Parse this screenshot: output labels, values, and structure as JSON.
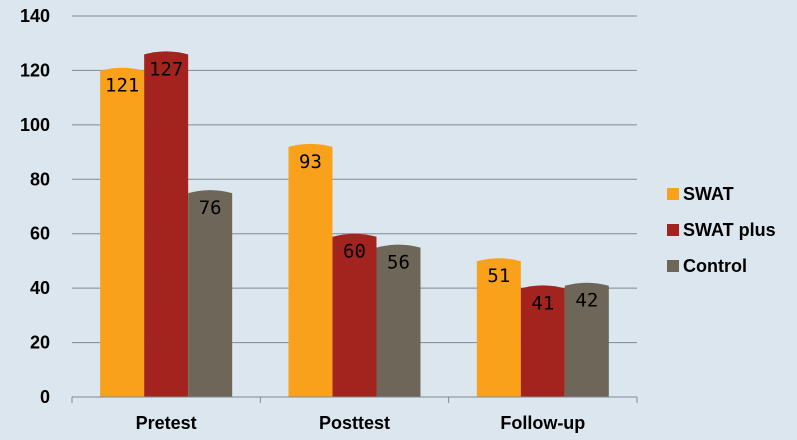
{
  "chart_data": {
    "type": "bar",
    "categories": [
      "Pretest",
      "Posttest",
      "Follow-up"
    ],
    "series": [
      {
        "name": "SWAT",
        "values": [
          121,
          93,
          51
        ],
        "color": "#f9a11b"
      },
      {
        "name": "SWAT plus",
        "values": [
          127,
          60,
          41
        ],
        "color": "#a3241f"
      },
      {
        "name": "Control",
        "values": [
          76,
          56,
          42
        ],
        "color": "#6e6759"
      }
    ],
    "yticks": [
      0,
      20,
      40,
      60,
      80,
      100,
      120,
      140
    ],
    "ylim": [
      0,
      140
    ],
    "grid": true,
    "legend_position": "right",
    "title": "",
    "xlabel": "",
    "ylabel": ""
  }
}
